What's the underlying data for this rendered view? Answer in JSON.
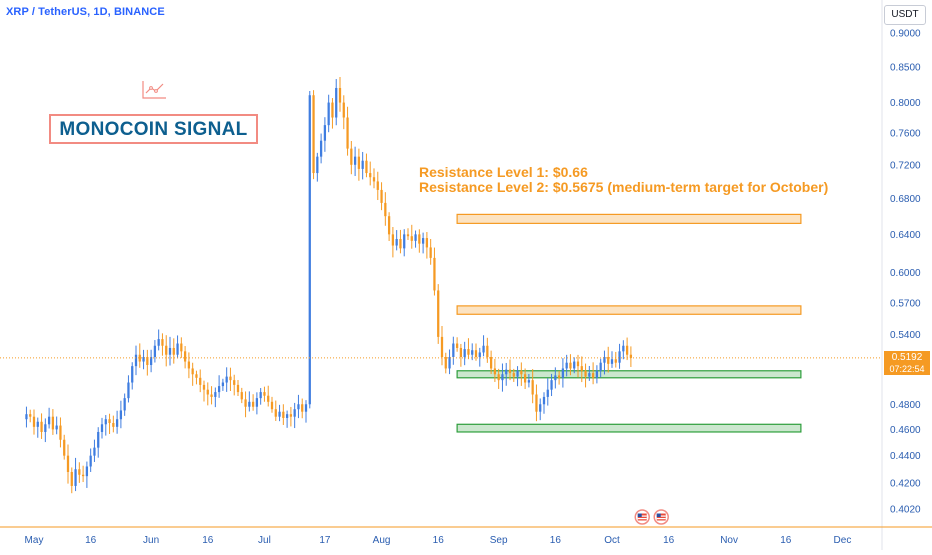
{
  "symbol_title": "XRP / TetherUS, 1D, BINANCE",
  "currency": "USDT",
  "brand": {
    "name": "MONOCOIN SIGNAL",
    "icon": "chart-line-icon",
    "color": "#0d5f8f",
    "border_color": "#f28b82"
  },
  "annotation": {
    "line1": "Resistance Level 1: $0.66",
    "line2": "Resistance Level 2: $0.5675 (medium-term target for October)",
    "color": "#f59a23"
  },
  "price_tag": {
    "price": "0.5192",
    "countdown": "07:22:54"
  },
  "calendar_icons": [
    "us-flag-icon",
    "us-flag-icon"
  ],
  "chart_data": {
    "type": "candlestick",
    "y_scale": "log",
    "ylim": [
      0.39,
      0.95
    ],
    "y_ticks": [
      0.9,
      0.85,
      0.8,
      0.76,
      0.72,
      0.68,
      0.64,
      0.6,
      0.57,
      0.54,
      0.48,
      0.46,
      0.44,
      0.42,
      0.402
    ],
    "y_tick_labels": [
      "0.9000",
      "0.8500",
      "0.8000",
      "0.7600",
      "0.7200",
      "0.6800",
      "0.6400",
      "0.6000",
      "0.5700",
      "0.5400",
      "0.4800",
      "0.4600",
      "0.4400",
      "0.4200",
      "0.4020"
    ],
    "x_tick_labels": [
      {
        "label": "May",
        "date": "2023-05-01"
      },
      {
        "label": "16",
        "date": "2023-05-16"
      },
      {
        "label": "Jun",
        "date": "2023-06-01"
      },
      {
        "label": "16",
        "date": "2023-06-16"
      },
      {
        "label": "Jul",
        "date": "2023-07-01"
      },
      {
        "label": "17",
        "date": "2023-07-17"
      },
      {
        "label": "Aug",
        "date": "2023-08-01"
      },
      {
        "label": "16",
        "date": "2023-08-16"
      },
      {
        "label": "Sep",
        "date": "2023-09-01"
      },
      {
        "label": "16",
        "date": "2023-09-16"
      },
      {
        "label": "Oct",
        "date": "2023-10-01"
      },
      {
        "label": "16",
        "date": "2023-10-16"
      },
      {
        "label": "Nov",
        "date": "2023-11-01"
      },
      {
        "label": "16",
        "date": "2023-11-16"
      },
      {
        "label": "Dec",
        "date": "2023-12-01"
      }
    ],
    "last_price": 0.5192,
    "zones": [
      {
        "kind": "resistance",
        "from_date": "2023-08-21",
        "to_date": "2023-11-20",
        "low": 0.652,
        "high": 0.662,
        "color": "#f59a23"
      },
      {
        "kind": "resistance",
        "from_date": "2023-08-21",
        "to_date": "2023-11-20",
        "low": 0.559,
        "high": 0.567,
        "color": "#f59a23"
      },
      {
        "kind": "support",
        "from_date": "2023-08-21",
        "to_date": "2023-11-20",
        "low": 0.502,
        "high": 0.508,
        "color": "#2e9e3c"
      },
      {
        "kind": "support",
        "from_date": "2023-08-21",
        "to_date": "2023-11-20",
        "low": 0.458,
        "high": 0.464,
        "color": "#2e9e3c"
      }
    ],
    "up_color": "#3f7de0",
    "down_color": "#f59a23",
    "closes": [
      [
        "2023-04-28",
        0.468
      ],
      [
        "2023-04-29",
        0.472
      ],
      [
        "2023-04-30",
        0.47
      ],
      [
        "2023-05-01",
        0.462
      ],
      [
        "2023-05-02",
        0.466
      ],
      [
        "2023-05-03",
        0.458
      ],
      [
        "2023-05-04",
        0.464
      ],
      [
        "2023-05-05",
        0.47
      ],
      [
        "2023-05-06",
        0.46
      ],
      [
        "2023-05-07",
        0.463
      ],
      [
        "2023-05-08",
        0.452
      ],
      [
        "2023-05-09",
        0.44
      ],
      [
        "2023-05-10",
        0.428
      ],
      [
        "2023-05-11",
        0.418
      ],
      [
        "2023-05-12",
        0.43
      ],
      [
        "2023-05-13",
        0.426
      ],
      [
        "2023-05-14",
        0.425
      ],
      [
        "2023-05-15",
        0.432
      ],
      [
        "2023-05-16",
        0.44
      ],
      [
        "2023-05-17",
        0.446
      ],
      [
        "2023-05-18",
        0.458
      ],
      [
        "2023-05-19",
        0.464
      ],
      [
        "2023-05-20",
        0.468
      ],
      [
        "2023-05-21",
        0.465
      ],
      [
        "2023-05-22",
        0.462
      ],
      [
        "2023-05-23",
        0.468
      ],
      [
        "2023-05-24",
        0.475
      ],
      [
        "2023-05-25",
        0.485
      ],
      [
        "2023-05-26",
        0.498
      ],
      [
        "2023-05-27",
        0.512
      ],
      [
        "2023-05-28",
        0.522
      ],
      [
        "2023-05-29",
        0.516
      ],
      [
        "2023-05-30",
        0.52
      ],
      [
        "2023-05-31",
        0.513
      ],
      [
        "2023-06-01",
        0.52
      ],
      [
        "2023-06-02",
        0.53
      ],
      [
        "2023-06-03",
        0.536
      ],
      [
        "2023-06-04",
        0.53
      ],
      [
        "2023-06-05",
        0.522
      ],
      [
        "2023-06-06",
        0.528
      ],
      [
        "2023-06-07",
        0.522
      ],
      [
        "2023-06-08",
        0.532
      ],
      [
        "2023-06-09",
        0.525
      ],
      [
        "2023-06-10",
        0.516
      ],
      [
        "2023-06-11",
        0.51
      ],
      [
        "2023-06-12",
        0.505
      ],
      [
        "2023-06-13",
        0.502
      ],
      [
        "2023-06-14",
        0.496
      ],
      [
        "2023-06-15",
        0.492
      ],
      [
        "2023-06-16",
        0.488
      ],
      [
        "2023-06-17",
        0.486
      ],
      [
        "2023-06-18",
        0.49
      ],
      [
        "2023-06-19",
        0.495
      ],
      [
        "2023-06-20",
        0.498
      ],
      [
        "2023-06-21",
        0.503
      ],
      [
        "2023-06-22",
        0.5
      ],
      [
        "2023-06-23",
        0.496
      ],
      [
        "2023-06-24",
        0.49
      ],
      [
        "2023-06-25",
        0.484
      ],
      [
        "2023-06-26",
        0.478
      ],
      [
        "2023-06-27",
        0.482
      ],
      [
        "2023-06-28",
        0.478
      ],
      [
        "2023-06-29",
        0.485
      ],
      [
        "2023-06-30",
        0.49
      ],
      [
        "2023-07-01",
        0.487
      ],
      [
        "2023-07-02",
        0.482
      ],
      [
        "2023-07-03",
        0.476
      ],
      [
        "2023-07-04",
        0.47
      ],
      [
        "2023-07-05",
        0.474
      ],
      [
        "2023-07-06",
        0.469
      ],
      [
        "2023-07-07",
        0.472
      ],
      [
        "2023-07-08",
        0.47
      ],
      [
        "2023-07-09",
        0.476
      ],
      [
        "2023-07-10",
        0.48
      ],
      [
        "2023-07-11",
        0.474
      ],
      [
        "2023-07-12",
        0.48
      ],
      [
        "2023-07-13",
        0.81
      ],
      [
        "2023-07-14",
        0.71
      ],
      [
        "2023-07-15",
        0.73
      ],
      [
        "2023-07-16",
        0.75
      ],
      [
        "2023-07-17",
        0.77
      ],
      [
        "2023-07-18",
        0.8
      ],
      [
        "2023-07-19",
        0.78
      ],
      [
        "2023-07-20",
        0.82
      ],
      [
        "2023-07-21",
        0.8
      ],
      [
        "2023-07-22",
        0.78
      ],
      [
        "2023-07-23",
        0.74
      ],
      [
        "2023-07-24",
        0.72
      ],
      [
        "2023-07-25",
        0.73
      ],
      [
        "2023-07-26",
        0.715
      ],
      [
        "2023-07-27",
        0.725
      ],
      [
        "2023-07-28",
        0.71
      ],
      [
        "2023-07-29",
        0.705
      ],
      [
        "2023-07-30",
        0.7
      ],
      [
        "2023-07-31",
        0.69
      ],
      [
        "2023-08-01",
        0.675
      ],
      [
        "2023-08-02",
        0.66
      ],
      [
        "2023-08-03",
        0.64
      ],
      [
        "2023-08-04",
        0.628
      ],
      [
        "2023-08-05",
        0.635
      ],
      [
        "2023-08-06",
        0.625
      ],
      [
        "2023-08-07",
        0.64
      ],
      [
        "2023-08-08",
        0.638
      ],
      [
        "2023-08-09",
        0.633
      ],
      [
        "2023-08-10",
        0.64
      ],
      [
        "2023-08-11",
        0.63
      ],
      [
        "2023-08-12",
        0.636
      ],
      [
        "2023-08-13",
        0.626
      ],
      [
        "2023-08-14",
        0.615
      ],
      [
        "2023-08-15",
        0.582
      ],
      [
        "2023-08-16",
        0.538
      ],
      [
        "2023-08-17",
        0.52
      ],
      [
        "2023-08-18",
        0.51
      ],
      [
        "2023-08-19",
        0.52
      ],
      [
        "2023-08-20",
        0.532
      ],
      [
        "2023-08-21",
        0.528
      ],
      [
        "2023-08-22",
        0.52
      ],
      [
        "2023-08-23",
        0.527
      ],
      [
        "2023-08-24",
        0.522
      ],
      [
        "2023-08-25",
        0.526
      ],
      [
        "2023-08-26",
        0.52
      ],
      [
        "2023-08-27",
        0.524
      ],
      [
        "2023-08-28",
        0.53
      ],
      [
        "2023-08-29",
        0.52
      ],
      [
        "2023-08-30",
        0.51
      ],
      [
        "2023-08-31",
        0.505
      ],
      [
        "2023-09-01",
        0.5
      ],
      [
        "2023-09-02",
        0.505
      ],
      [
        "2023-09-03",
        0.509
      ],
      [
        "2023-09-04",
        0.506
      ],
      [
        "2023-09-05",
        0.503
      ],
      [
        "2023-09-06",
        0.508
      ],
      [
        "2023-09-07",
        0.505
      ],
      [
        "2023-09-08",
        0.498
      ],
      [
        "2023-09-09",
        0.5
      ],
      [
        "2023-09-10",
        0.488
      ],
      [
        "2023-09-11",
        0.474
      ],
      [
        "2023-09-12",
        0.48
      ],
      [
        "2023-09-13",
        0.486
      ],
      [
        "2023-09-14",
        0.492
      ],
      [
        "2023-09-15",
        0.5
      ],
      [
        "2023-09-16",
        0.504
      ],
      [
        "2023-09-17",
        0.502
      ],
      [
        "2023-09-18",
        0.51
      ],
      [
        "2023-09-19",
        0.515
      ],
      [
        "2023-09-20",
        0.51
      ],
      [
        "2023-09-21",
        0.516
      ],
      [
        "2023-09-22",
        0.512
      ],
      [
        "2023-09-23",
        0.508
      ],
      [
        "2023-09-24",
        0.503
      ],
      [
        "2023-09-25",
        0.506
      ],
      [
        "2023-09-26",
        0.502
      ],
      [
        "2023-09-27",
        0.508
      ],
      [
        "2023-09-28",
        0.515
      ],
      [
        "2023-09-29",
        0.52
      ],
      [
        "2023-09-30",
        0.514
      ],
      [
        "2023-10-01",
        0.518
      ],
      [
        "2023-10-02",
        0.515
      ],
      [
        "2023-10-03",
        0.525
      ],
      [
        "2023-10-04",
        0.53
      ],
      [
        "2023-10-05",
        0.522
      ],
      [
        "2023-10-06",
        0.5192
      ]
    ]
  }
}
